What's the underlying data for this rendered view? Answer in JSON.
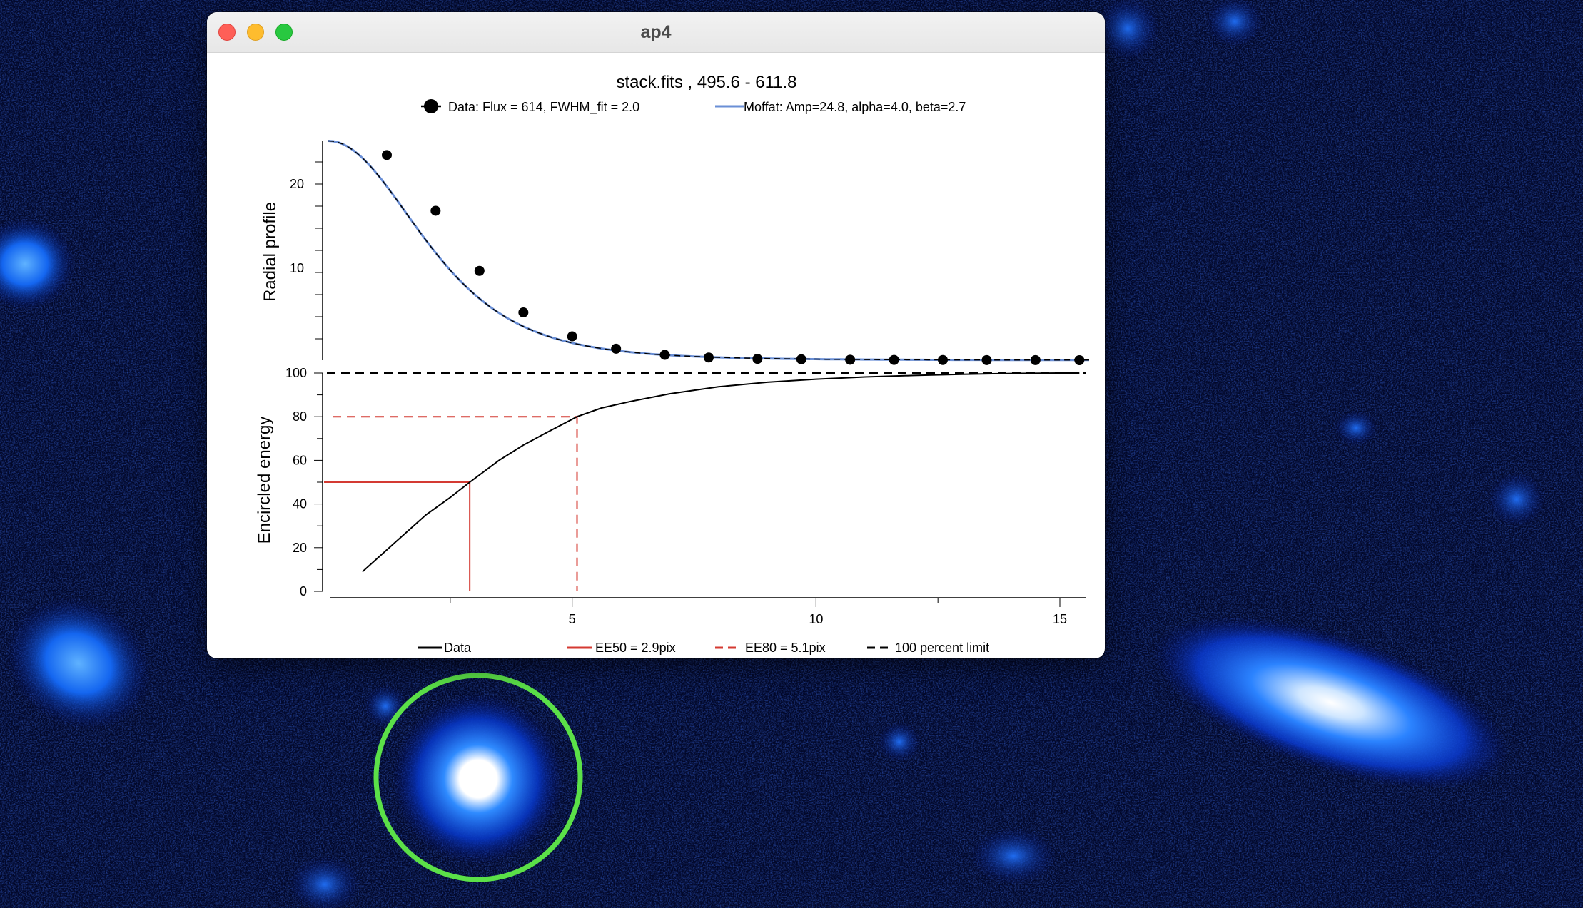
{
  "window": {
    "title": "ap4"
  },
  "chart_data": [
    {
      "type": "scatter",
      "title": "stack.fits , 495.6 - 611.8",
      "ylabel": "Radial profile",
      "legend": [
        {
          "label": "Data: Flux = 614, FWHM_fit = 2.0",
          "style": "dots",
          "color": "#000000"
        },
        {
          "label": "Moffat: Amp=24.8, alpha=4.0, beta=2.7",
          "style": "line",
          "color": "#6a8fd6"
        }
      ],
      "y_ticks": [
        "10",
        "20"
      ],
      "ylim": [
        0,
        25
      ],
      "xlim": [
        0,
        15.6
      ],
      "data": {
        "x": [
          1.2,
          2.2,
          3.1,
          4.0,
          5.0,
          5.9,
          6.9,
          7.8,
          8.8,
          9.7,
          10.7,
          11.6,
          12.6,
          13.5,
          14.5,
          15.4
        ],
        "y": [
          23.2,
          16.9,
          10.1,
          5.4,
          2.7,
          1.3,
          0.6,
          0.3,
          0.15,
          0.1,
          0.05,
          0.03,
          0.02,
          0.01,
          0.01,
          0.0
        ]
      },
      "moffat": {
        "amp": 24.8,
        "alpha": 4.0,
        "beta": 2.7
      }
    },
    {
      "type": "line",
      "xlabel": "",
      "ylabel": "Encircled energy",
      "x_ticks": [
        "5",
        "10",
        "15"
      ],
      "y_ticks": [
        "0",
        "20",
        "40",
        "60",
        "80",
        "100"
      ],
      "xlim": [
        0,
        15.6
      ],
      "ylim": [
        0,
        100
      ],
      "legend": [
        {
          "label": "Data",
          "style": "solid",
          "color": "#000000"
        },
        {
          "label": "EE50 = 2.9pix",
          "style": "solid",
          "color": "#d43a32"
        },
        {
          "label": "EE80 = 5.1pix",
          "style": "dashed",
          "color": "#d43a32"
        },
        {
          "label": "100 percent limit",
          "style": "dashed",
          "color": "#000000"
        }
      ],
      "series": {
        "x": [
          0.7,
          1.3,
          2.0,
          2.5,
          2.9,
          3.5,
          4.0,
          4.5,
          5.1,
          5.6,
          6.2,
          7.0,
          8.0,
          9.0,
          10.0,
          11.0,
          12.0,
          13.0,
          14.0,
          15.0,
          15.4
        ],
        "y": [
          9,
          21,
          35,
          43,
          50,
          60,
          67,
          73,
          80,
          84,
          87,
          90.5,
          93.7,
          95.8,
          97.2,
          98.2,
          98.9,
          99.4,
          99.8,
          100,
          100
        ]
      },
      "ee50": {
        "x": 2.9,
        "y": 50
      },
      "ee80": {
        "x": 5.1,
        "y": 80
      },
      "limit": 100
    }
  ]
}
